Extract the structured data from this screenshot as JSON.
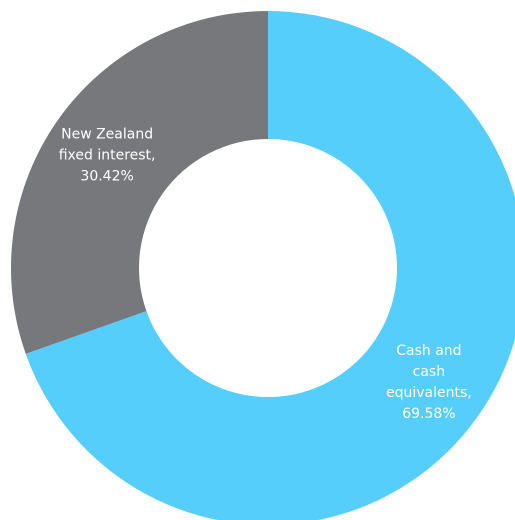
{
  "chart_data": {
    "type": "pie",
    "donut": true,
    "slices": [
      {
        "name": "Cash and cash equivalents",
        "value": 69.58,
        "color": "#55CEFC",
        "label_lines": [
          "Cash and",
          "cash",
          "equivalents,",
          "69.58%"
        ]
      },
      {
        "name": "New Zealand fixed interest",
        "value": 30.42,
        "color": "#77787B",
        "label_lines": [
          "New Zealand",
          "fixed interest,",
          "30.42%"
        ]
      }
    ]
  }
}
